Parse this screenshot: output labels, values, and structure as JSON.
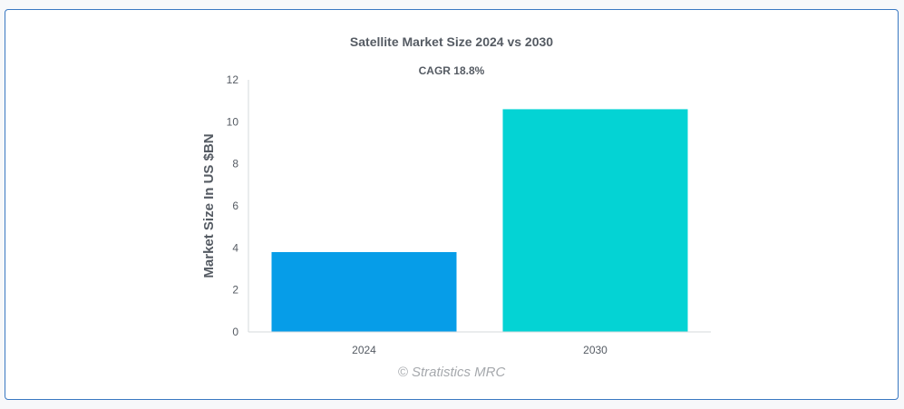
{
  "chart_data": {
    "type": "bar",
    "title": "Satellite Market Size 2024 vs 2030",
    "subtitle": "CAGR 18.8%",
    "xlabel": "",
    "ylabel": "Market Size In US $BN",
    "categories": [
      "2024",
      "2030"
    ],
    "values": [
      3.8,
      10.6
    ],
    "colors": [
      "#069de8",
      "#04d3d4"
    ],
    "ylim": [
      0,
      12
    ],
    "yticks": [
      0,
      2,
      4,
      6,
      8,
      10,
      12
    ],
    "grid": false,
    "legend": "none"
  },
  "watermark": "© Stratistics MRC"
}
